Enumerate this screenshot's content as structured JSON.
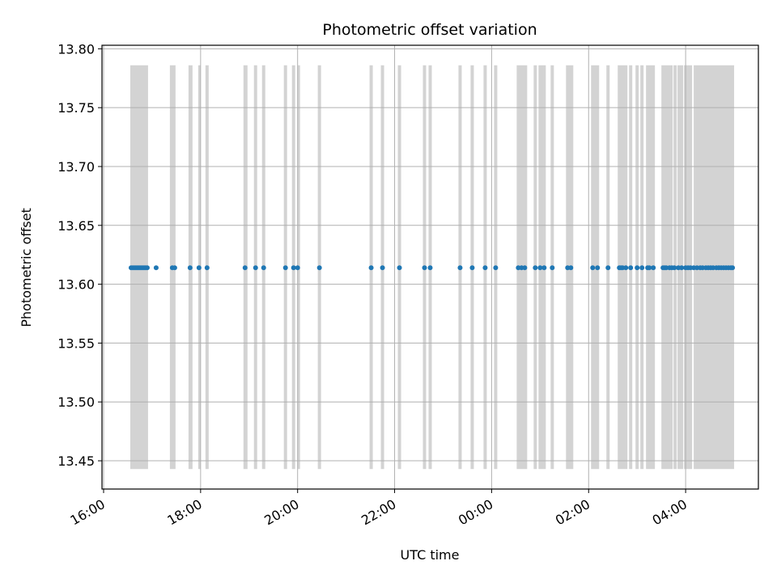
{
  "chart_data": {
    "type": "scatter",
    "title": "Photometric offset variation",
    "xlabel": "UTC time",
    "ylabel": "Photometric offset",
    "x_is_time": true,
    "xlim": [
      "15:58",
      "05:30"
    ],
    "ylim": [
      13.426,
      13.803
    ],
    "grid": true,
    "marker_color": "#1f77b4",
    "band_color": "#d3d3d3",
    "x_ticks": [
      "16:00",
      "18:00",
      "20:00",
      "22:00",
      "00:00",
      "02:00",
      "04:00"
    ],
    "y_ticks": [
      "13.45",
      "13.50",
      "13.55",
      "13.60",
      "13.65",
      "13.70",
      "13.75",
      "13.80"
    ],
    "band_range": [
      13.443,
      13.786
    ],
    "series": [
      {
        "x": [
          "16:34",
          "16:36",
          "16:38",
          "16:40",
          "16:42",
          "16:44",
          "16:46",
          "16:48",
          "16:50",
          "16:52",
          "16:54",
          "17:05",
          "17:25",
          "17:28",
          "17:47",
          "17:58",
          "18:08",
          "18:55",
          "19:08",
          "19:18",
          "19:45",
          "19:55",
          "20:00",
          "20:27",
          "21:31",
          "21:45",
          "22:06",
          "22:37",
          "22:44",
          "23:21",
          "23:36",
          "23:52",
          "00:05",
          "00:33",
          "00:37",
          "00:41",
          "00:54",
          "01:00",
          "01:05",
          "01:15",
          "01:34",
          "01:38",
          "02:05",
          "02:11",
          "02:24",
          "02:38",
          "02:40",
          "02:42",
          "02:46",
          "02:52",
          "03:00",
          "03:06",
          "03:13",
          "03:15",
          "03:20",
          "03:32",
          "03:34",
          "03:36",
          "03:40",
          "03:43",
          "03:46",
          "03:51",
          "03:55",
          "04:00",
          "04:03",
          "04:06",
          "04:10",
          "04:14",
          "04:18",
          "04:21",
          "04:25",
          "04:28",
          "04:31",
          "04:34",
          "04:38",
          "04:41",
          "04:44",
          "04:47",
          "04:50",
          "04:53",
          "04:56",
          "04:58"
        ],
        "y": [
          13.614,
          13.614,
          13.614,
          13.614,
          13.614,
          13.614,
          13.614,
          13.614,
          13.614,
          13.614,
          13.614,
          13.614,
          13.614,
          13.614,
          13.614,
          13.614,
          13.614,
          13.614,
          13.614,
          13.614,
          13.614,
          13.614,
          13.614,
          13.614,
          13.614,
          13.614,
          13.614,
          13.614,
          13.614,
          13.614,
          13.614,
          13.614,
          13.614,
          13.614,
          13.614,
          13.614,
          13.614,
          13.614,
          13.614,
          13.614,
          13.614,
          13.614,
          13.614,
          13.614,
          13.614,
          13.614,
          13.614,
          13.614,
          13.614,
          13.614,
          13.614,
          13.614,
          13.614,
          13.614,
          13.614,
          13.614,
          13.614,
          13.614,
          13.614,
          13.614,
          13.614,
          13.614,
          13.614,
          13.614,
          13.614,
          13.614,
          13.614,
          13.614,
          13.614,
          13.614,
          13.614,
          13.614,
          13.614,
          13.614,
          13.614,
          13.614,
          13.614,
          13.614,
          13.614,
          13.614,
          13.614,
          13.614
        ]
      }
    ],
    "bands": [
      [
        "16:33",
        "16:55"
      ],
      [
        "17:22",
        "17:29"
      ],
      [
        "17:45",
        "17:50"
      ],
      [
        "17:57",
        "18:00"
      ],
      [
        "18:06",
        "18:10"
      ],
      [
        "18:53",
        "18:58"
      ],
      [
        "19:06",
        "19:10"
      ],
      [
        "19:16",
        "19:20"
      ],
      [
        "19:43",
        "19:47"
      ],
      [
        "19:53",
        "19:57"
      ],
      [
        "20:00",
        "20:03"
      ],
      [
        "20:25",
        "20:29"
      ],
      [
        "21:29",
        "21:33"
      ],
      [
        "21:43",
        "21:47"
      ],
      [
        "22:04",
        "22:08"
      ],
      [
        "22:35",
        "22:39"
      ],
      [
        "22:42",
        "22:46"
      ],
      [
        "23:19",
        "23:23"
      ],
      [
        "23:34",
        "23:38"
      ],
      [
        "23:50",
        "23:54"
      ],
      [
        "00:03",
        "00:07"
      ],
      [
        "00:31",
        "00:44"
      ],
      [
        "00:52",
        "00:56"
      ],
      [
        "00:58",
        "01:07"
      ],
      [
        "01:13",
        "01:17"
      ],
      [
        "01:32",
        "01:41"
      ],
      [
        "02:03",
        "02:13"
      ],
      [
        "02:22",
        "02:26"
      ],
      [
        "02:36",
        "02:48"
      ],
      [
        "02:50",
        "02:54"
      ],
      [
        "02:58",
        "03:02"
      ],
      [
        "03:04",
        "03:08"
      ],
      [
        "03:11",
        "03:22"
      ],
      [
        "03:30",
        "03:44"
      ],
      [
        "03:45",
        "03:49"
      ],
      [
        "03:50",
        "03:57"
      ],
      [
        "03:58",
        "04:08"
      ],
      [
        "04:10",
        "05:00"
      ]
    ]
  }
}
